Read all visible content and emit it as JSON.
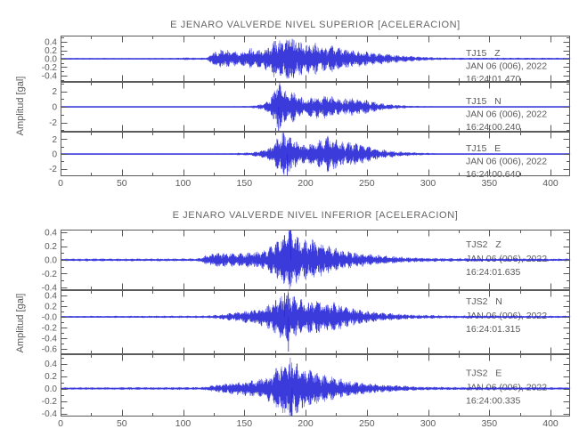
{
  "app": {
    "background": "#ffffff",
    "trace_color": "#2626d8",
    "axis_color": "#5a5a5a",
    "text_color": "#5a5a5a",
    "title_color": "#666666"
  },
  "chart_data": [
    {
      "type": "line",
      "title": "E JENARO VALVERDE NIVEL SUPERIOR [ACELERACION]",
      "ylabel": "Amplitud [gal]",
      "xlim": [
        0,
        416
      ],
      "x_major_ticks": [
        0,
        50,
        100,
        150,
        200,
        250,
        300,
        350,
        400
      ],
      "x_minor_step": 25,
      "grid": false,
      "traces": [
        {
          "station": "TJ15",
          "component": "Z",
          "date": "JAN 06 (006), 2022",
          "time": "16:24:01.470",
          "ylim": [
            -0.55,
            0.55
          ],
          "y_major_step": 0.2,
          "y_minor_step": 0.1,
          "yticks": [
            {
              "v": 0.4,
              "t": "0.4"
            },
            {
              "v": 0.2,
              "t": "0.2"
            },
            {
              "v": 0.0,
              "t": "0.0"
            },
            {
              "v": -0.2,
              "t": "-0.2"
            },
            {
              "v": -0.4,
              "t": "-0.4"
            }
          ],
          "seed": 101,
          "envelope": [
            [
              0,
              0.018
            ],
            [
              95,
              0.018
            ],
            [
              100,
              0.032
            ],
            [
              110,
              0.022
            ],
            [
              120,
              0.025
            ],
            [
              123,
              0.13
            ],
            [
              132,
              0.2
            ],
            [
              140,
              0.16
            ],
            [
              148,
              0.14
            ],
            [
              155,
              0.22
            ],
            [
              163,
              0.18
            ],
            [
              170,
              0.28
            ],
            [
              176,
              0.42
            ],
            [
              182,
              0.38
            ],
            [
              187,
              0.52
            ],
            [
              193,
              0.42
            ],
            [
              200,
              0.3
            ],
            [
              208,
              0.35
            ],
            [
              215,
              0.25
            ],
            [
              222,
              0.28
            ],
            [
              230,
              0.22
            ],
            [
              240,
              0.18
            ],
            [
              250,
              0.15
            ],
            [
              262,
              0.12
            ],
            [
              275,
              0.08
            ],
            [
              290,
              0.05
            ],
            [
              305,
              0.03
            ],
            [
              320,
              0.022
            ],
            [
              416,
              0.02
            ]
          ],
          "spikes": []
        },
        {
          "station": "TJ15",
          "component": "N",
          "date": "JAN 06 (006), 2022",
          "time": "16:24:00.240",
          "ylim": [
            -3.2,
            3.2
          ],
          "y_major_step": 2,
          "y_minor_step": 1,
          "yticks": [
            {
              "v": 2,
              "t": "2"
            },
            {
              "v": 0,
              "t": "0"
            },
            {
              "v": -2,
              "t": "-2"
            }
          ],
          "seed": 202,
          "envelope": [
            [
              0,
              0.05
            ],
            [
              120,
              0.06
            ],
            [
              140,
              0.08
            ],
            [
              155,
              0.12
            ],
            [
              162,
              0.25
            ],
            [
              168,
              0.5
            ],
            [
              173,
              1.4
            ],
            [
              177,
              3.1
            ],
            [
              181,
              2.4
            ],
            [
              185,
              1.5
            ],
            [
              190,
              1.9
            ],
            [
              196,
              1.1
            ],
            [
              202,
              0.9
            ],
            [
              207,
              1.5
            ],
            [
              212,
              1.1
            ],
            [
              218,
              1.4
            ],
            [
              224,
              1.0
            ],
            [
              230,
              0.8
            ],
            [
              236,
              1.1
            ],
            [
              243,
              0.85
            ],
            [
              250,
              0.8
            ],
            [
              257,
              0.55
            ],
            [
              265,
              0.35
            ],
            [
              275,
              0.22
            ],
            [
              288,
              0.12
            ],
            [
              300,
              0.09
            ],
            [
              320,
              0.06
            ],
            [
              416,
              0.05
            ]
          ],
          "spikes": [
            {
              "t": 178,
              "v": -3.1
            }
          ]
        },
        {
          "station": "TJ15",
          "component": "E",
          "date": "JAN 06 (006), 2022",
          "time": "16:24:00.640",
          "ylim": [
            -3.0,
            3.0
          ],
          "y_major_step": 2,
          "y_minor_step": 1,
          "yticks": [
            {
              "v": 2,
              "t": "2"
            },
            {
              "v": 0,
              "t": "0"
            },
            {
              "v": -2,
              "t": "-2"
            }
          ],
          "seed": 303,
          "envelope": [
            [
              0,
              0.05
            ],
            [
              120,
              0.07
            ],
            [
              140,
              0.1
            ],
            [
              155,
              0.2
            ],
            [
              165,
              0.45
            ],
            [
              172,
              0.9
            ],
            [
              178,
              2.0
            ],
            [
              183,
              2.9
            ],
            [
              188,
              2.2
            ],
            [
              193,
              1.4
            ],
            [
              199,
              1.1
            ],
            [
              205,
              1.3
            ],
            [
              211,
              1.7
            ],
            [
              218,
              2.1
            ],
            [
              225,
              1.9
            ],
            [
              231,
              1.3
            ],
            [
              238,
              1.5
            ],
            [
              245,
              1.2
            ],
            [
              252,
              0.9
            ],
            [
              260,
              0.6
            ],
            [
              270,
              0.4
            ],
            [
              282,
              0.25
            ],
            [
              295,
              0.15
            ],
            [
              310,
              0.08
            ],
            [
              330,
              0.06
            ],
            [
              416,
              0.05
            ]
          ],
          "spikes": [
            {
              "t": 185,
              "v": -2.9
            }
          ]
        }
      ]
    },
    {
      "type": "line",
      "title": "E JENARO VALVERDE NIVEL INFERIOR [ACELERACION]",
      "ylabel": "Amplitud [gal]",
      "xlim": [
        0,
        416
      ],
      "x_major_ticks": [
        0,
        50,
        100,
        150,
        200,
        250,
        300,
        350,
        400
      ],
      "x_minor_step": 25,
      "grid": false,
      "traces": [
        {
          "station": "TJS2",
          "component": "Z",
          "date": "JAN 06 (006), 2022",
          "time": "16:24:01.635",
          "ylim": [
            -0.44,
            0.44
          ],
          "y_major_step": 0.2,
          "y_minor_step": 0.1,
          "yticks": [
            {
              "v": 0.4,
              "t": "0.4"
            },
            {
              "v": 0.2,
              "t": "0.2"
            },
            {
              "v": 0.0,
              "t": "0.0"
            },
            {
              "v": -0.2,
              "t": "-0.2"
            },
            {
              "v": -0.4,
              "t": "-0.4"
            }
          ],
          "seed": 404,
          "envelope": [
            [
              0,
              0.016
            ],
            [
              112,
              0.018
            ],
            [
              120,
              0.07
            ],
            [
              128,
              0.1
            ],
            [
              136,
              0.09
            ],
            [
              145,
              0.08
            ],
            [
              152,
              0.1
            ],
            [
              160,
              0.11
            ],
            [
              168,
              0.14
            ],
            [
              175,
              0.22
            ],
            [
              181,
              0.3
            ],
            [
              186,
              0.42
            ],
            [
              191,
              0.32
            ],
            [
              197,
              0.26
            ],
            [
              204,
              0.28
            ],
            [
              211,
              0.22
            ],
            [
              218,
              0.18
            ],
            [
              226,
              0.14
            ],
            [
              235,
              0.11
            ],
            [
              245,
              0.09
            ],
            [
              255,
              0.07
            ],
            [
              268,
              0.05
            ],
            [
              282,
              0.035
            ],
            [
              300,
              0.025
            ],
            [
              320,
              0.02
            ],
            [
              416,
              0.016
            ]
          ],
          "spikes": [
            {
              "t": 188,
              "v": 0.43
            }
          ]
        },
        {
          "station": "TJS2",
          "component": "N",
          "date": "JAN 06 (006), 2022",
          "time": "16:24:01.315",
          "ylim": [
            -0.7,
            0.5
          ],
          "y_major_step": 0.2,
          "y_minor_step": 0.1,
          "yticks": [
            {
              "v": 0.4,
              "t": "0.4"
            },
            {
              "v": 0.2,
              "t": "0.2"
            },
            {
              "v": 0.0,
              "t": "-0.0"
            },
            {
              "v": -0.2,
              "t": "-0.2"
            },
            {
              "v": -0.4,
              "t": "-0.4"
            },
            {
              "v": -0.6,
              "t": "-0.6"
            }
          ],
          "seed": 505,
          "envelope": [
            [
              0,
              0.015
            ],
            [
              120,
              0.02
            ],
            [
              135,
              0.05
            ],
            [
              148,
              0.09
            ],
            [
              158,
              0.12
            ],
            [
              166,
              0.16
            ],
            [
              173,
              0.24
            ],
            [
              179,
              0.34
            ],
            [
              184,
              0.45
            ],
            [
              189,
              0.36
            ],
            [
              195,
              0.3
            ],
            [
              202,
              0.26
            ],
            [
              209,
              0.29
            ],
            [
              216,
              0.22
            ],
            [
              224,
              0.25
            ],
            [
              231,
              0.18
            ],
            [
              240,
              0.14
            ],
            [
              250,
              0.1
            ],
            [
              262,
              0.07
            ],
            [
              275,
              0.05
            ],
            [
              290,
              0.035
            ],
            [
              310,
              0.025
            ],
            [
              416,
              0.018
            ]
          ],
          "spikes": [
            {
              "t": 186,
              "v": -0.65
            },
            {
              "t": 183,
              "v": 0.45
            }
          ]
        },
        {
          "station": "TJS2",
          "component": "E",
          "date": "JAN 06 (006), 2022",
          "time": "16:24:00.335",
          "ylim": [
            -0.45,
            0.55
          ],
          "y_major_step": 0.2,
          "y_minor_step": 0.1,
          "yticks": [
            {
              "v": 0.4,
              "t": "0.4"
            },
            {
              "v": 0.2,
              "t": "0.2"
            },
            {
              "v": 0.0,
              "t": "0.0"
            },
            {
              "v": -0.2,
              "t": "-0.2"
            },
            {
              "v": -0.4,
              "t": "-0.4"
            }
          ],
          "seed": 606,
          "envelope": [
            [
              0,
              0.016
            ],
            [
              115,
              0.02
            ],
            [
              125,
              0.05
            ],
            [
              138,
              0.08
            ],
            [
              148,
              0.1
            ],
            [
              158,
              0.12
            ],
            [
              167,
              0.16
            ],
            [
              174,
              0.24
            ],
            [
              180,
              0.36
            ],
            [
              186,
              0.45
            ],
            [
              191,
              0.38
            ],
            [
              197,
              0.3
            ],
            [
              204,
              0.26
            ],
            [
              211,
              0.22
            ],
            [
              219,
              0.18
            ],
            [
              228,
              0.14
            ],
            [
              238,
              0.11
            ],
            [
              248,
              0.08
            ],
            [
              260,
              0.06
            ],
            [
              275,
              0.045
            ],
            [
              290,
              0.03
            ],
            [
              310,
              0.022
            ],
            [
              416,
              0.018
            ]
          ],
          "spikes": [
            {
              "t": 189,
              "v": -0.44
            }
          ]
        }
      ]
    }
  ]
}
